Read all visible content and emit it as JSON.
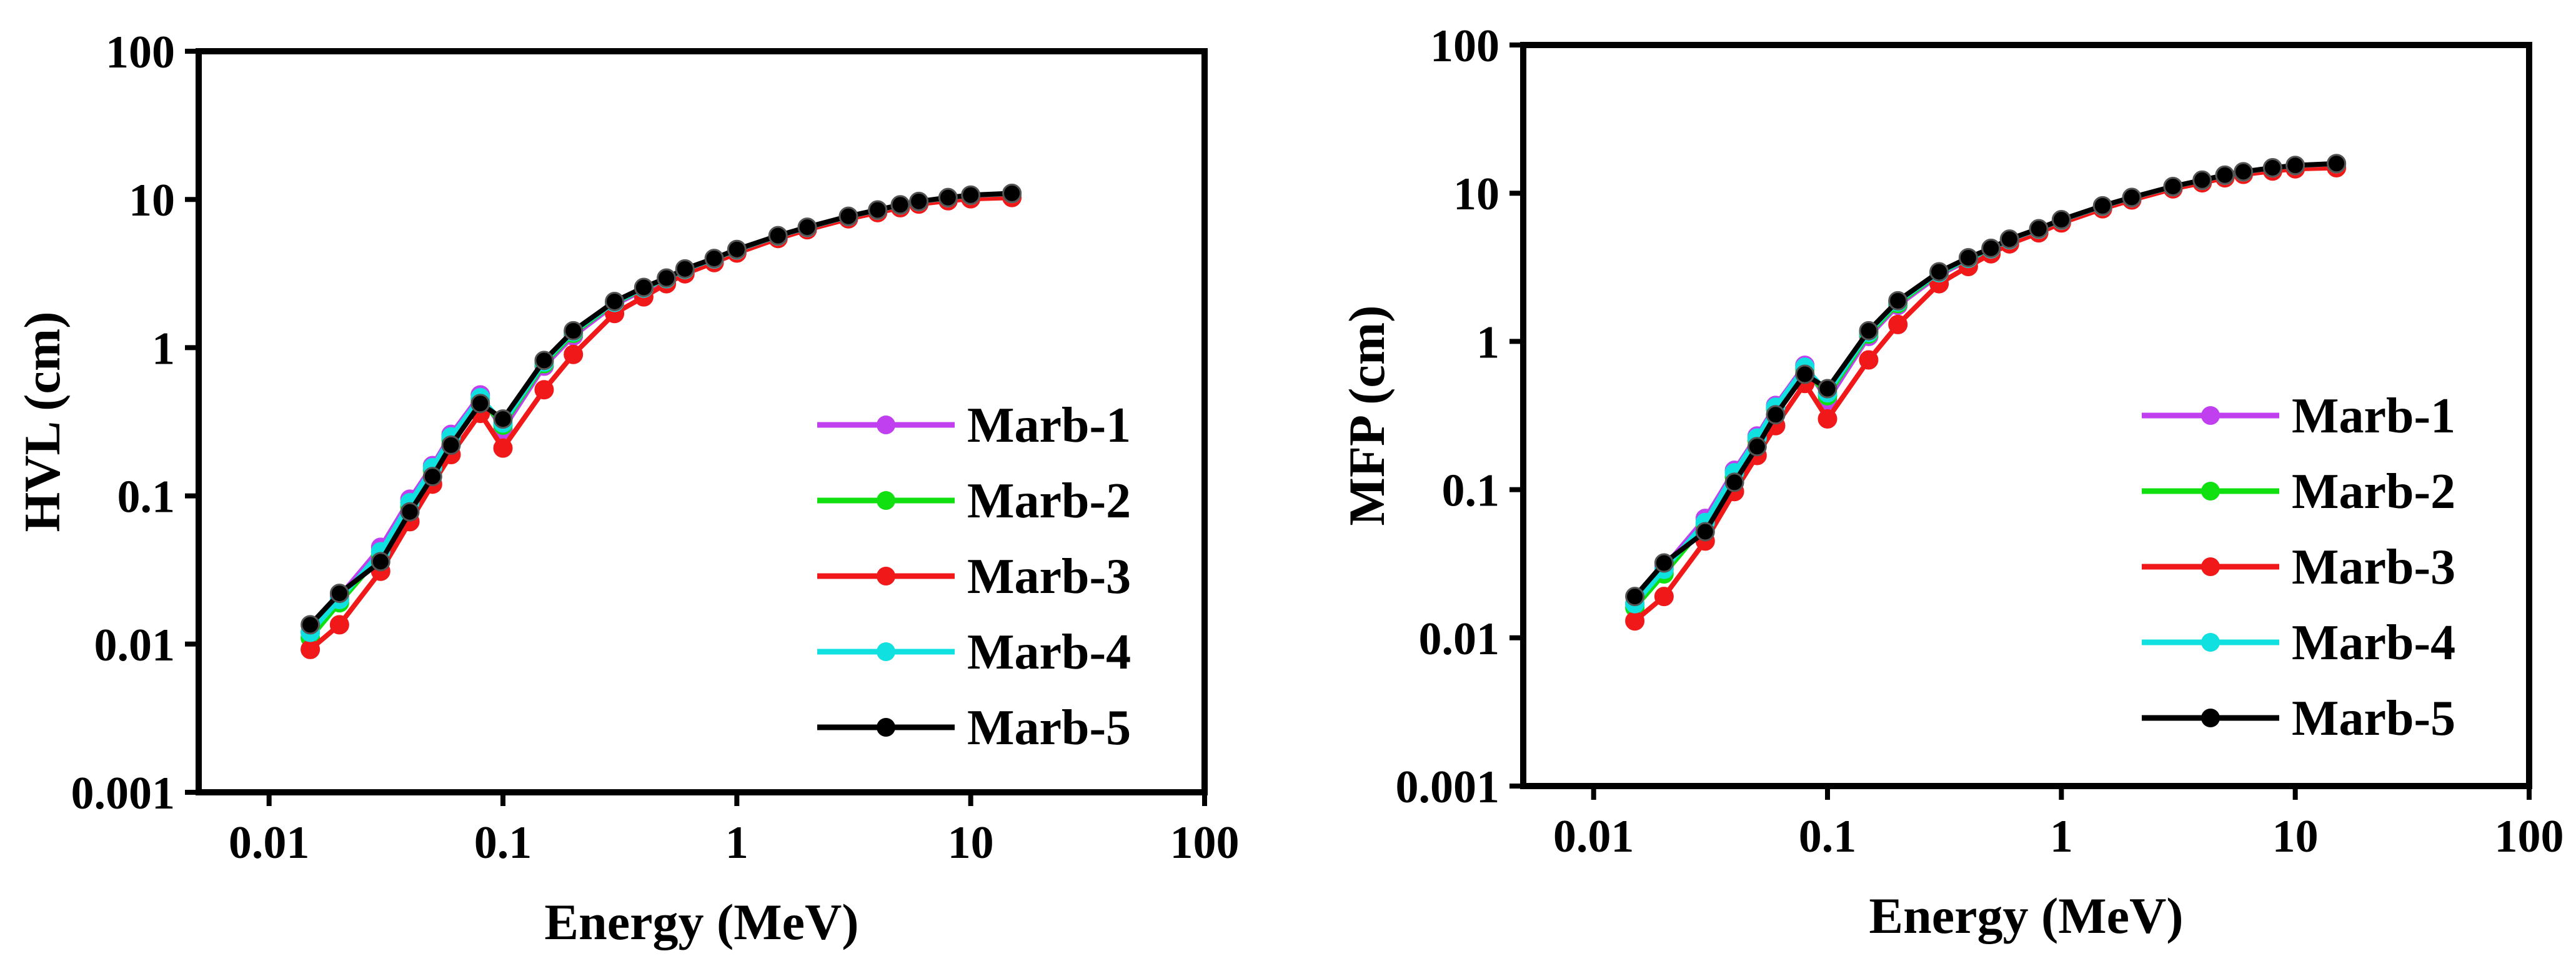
{
  "colors": {
    "Marb-1": "#c040f0",
    "Marb-2": "#10e010",
    "Marb-3": "#f01818",
    "Marb-4": "#10e0e0",
    "Marb-5": "#000000"
  },
  "chart_data": [
    {
      "type": "line",
      "xlabel": "Energy (MeV)",
      "ylabel": "HVL (cm)",
      "xscale": "log",
      "yscale": "log",
      "xlim": [
        0.005,
        100
      ],
      "ylim": [
        0.001,
        100
      ],
      "xticks": [
        "0.01",
        "0.1",
        "1",
        "10",
        "100"
      ],
      "yticks": [
        "0.001",
        "0.01",
        "0.1",
        "1",
        "10",
        "100"
      ],
      "legend_position": "lower-right",
      "x": [
        0.015,
        0.02,
        0.03,
        0.04,
        0.05,
        0.06,
        0.08,
        0.1,
        0.15,
        0.2,
        0.3,
        0.4,
        0.5,
        0.6,
        0.8,
        1,
        1.5,
        2,
        3,
        4,
        5,
        6,
        8,
        10,
        15
      ],
      "series": [
        {
          "name": "Marb-1",
          "values": [
            0.012,
            0.021,
            0.045,
            0.095,
            0.16,
            0.26,
            0.48,
            0.28,
            0.75,
            1.2,
            1.95,
            2.45,
            2.85,
            3.3,
            3.9,
            4.5,
            5.6,
            6.4,
            7.6,
            8.4,
            9.1,
            9.6,
            10.2,
            10.6,
            10.9
          ]
        },
        {
          "name": "Marb-2",
          "values": [
            0.011,
            0.019,
            0.04,
            0.085,
            0.15,
            0.24,
            0.45,
            0.3,
            0.78,
            1.25,
            2.0,
            2.5,
            2.9,
            3.35,
            3.95,
            4.55,
            5.65,
            6.45,
            7.65,
            8.45,
            9.15,
            9.65,
            10.25,
            10.65,
            10.95
          ]
        },
        {
          "name": "Marb-3",
          "values": [
            0.0092,
            0.0135,
            0.031,
            0.067,
            0.12,
            0.19,
            0.36,
            0.21,
            0.52,
            0.9,
            1.7,
            2.2,
            2.7,
            3.15,
            3.75,
            4.35,
            5.45,
            6.25,
            7.4,
            8.15,
            8.8,
            9.3,
            9.8,
            10.1,
            10.3
          ]
        },
        {
          "name": "Marb-4",
          "values": [
            0.012,
            0.02,
            0.042,
            0.09,
            0.155,
            0.25,
            0.46,
            0.31,
            0.8,
            1.28,
            2.02,
            2.52,
            2.92,
            3.37,
            3.97,
            4.57,
            5.67,
            6.47,
            7.67,
            8.47,
            9.17,
            9.67,
            10.27,
            10.67,
            10.97
          ]
        },
        {
          "name": "Marb-5",
          "values": [
            0.0135,
            0.022,
            0.036,
            0.078,
            0.135,
            0.22,
            0.42,
            0.33,
            0.82,
            1.3,
            2.05,
            2.55,
            2.95,
            3.4,
            4.0,
            4.6,
            5.7,
            6.5,
            7.7,
            8.5,
            9.2,
            9.7,
            10.3,
            10.7,
            11.0
          ]
        }
      ]
    },
    {
      "type": "line",
      "xlabel": "Energy (MeV)",
      "ylabel": "MFP (cm)",
      "xscale": "log",
      "yscale": "log",
      "xlim": [
        0.005,
        100
      ],
      "ylim": [
        0.001,
        100
      ],
      "xticks": [
        "0.01",
        "0.1",
        "1",
        "10",
        "100"
      ],
      "yticks": [
        "0.001",
        "0.01",
        "0.1",
        "1",
        "10",
        "100"
      ],
      "legend_position": "lower-right",
      "x": [
        0.015,
        0.02,
        0.03,
        0.04,
        0.05,
        0.06,
        0.08,
        0.1,
        0.15,
        0.2,
        0.3,
        0.4,
        0.5,
        0.6,
        0.8,
        1,
        1.5,
        2,
        3,
        4,
        5,
        6,
        8,
        10,
        15
      ],
      "series": [
        {
          "name": "Marb-1",
          "values": [
            0.017,
            0.03,
            0.064,
            0.135,
            0.23,
            0.37,
            0.69,
            0.4,
            1.08,
            1.75,
            2.8,
            3.55,
            4.1,
            4.75,
            5.6,
            6.5,
            8.1,
            9.2,
            11.0,
            12.1,
            13.1,
            13.8,
            14.7,
            15.3,
            15.7
          ]
        },
        {
          "name": "Marb-2",
          "values": [
            0.016,
            0.027,
            0.058,
            0.122,
            0.215,
            0.35,
            0.65,
            0.43,
            1.12,
            1.8,
            2.88,
            3.6,
            4.18,
            4.83,
            5.7,
            6.56,
            8.15,
            9.3,
            11.05,
            12.2,
            13.2,
            13.9,
            14.8,
            15.35,
            15.8
          ]
        },
        {
          "name": "Marb-3",
          "values": [
            0.013,
            0.019,
            0.045,
            0.097,
            0.17,
            0.27,
            0.52,
            0.3,
            0.75,
            1.3,
            2.45,
            3.2,
            3.9,
            4.55,
            5.4,
            6.3,
            7.85,
            9.0,
            10.7,
            11.75,
            12.7,
            13.4,
            14.1,
            14.6,
            14.85
          ]
        },
        {
          "name": "Marb-4",
          "values": [
            0.017,
            0.029,
            0.06,
            0.13,
            0.223,
            0.36,
            0.67,
            0.45,
            1.15,
            1.85,
            2.91,
            3.63,
            4.21,
            4.86,
            5.72,
            6.59,
            8.18,
            9.33,
            11.07,
            12.22,
            13.22,
            13.93,
            14.82,
            15.38,
            15.82
          ]
        },
        {
          "name": "Marb-5",
          "values": [
            0.019,
            0.032,
            0.052,
            0.112,
            0.195,
            0.32,
            0.6,
            0.48,
            1.18,
            1.88,
            2.95,
            3.67,
            4.25,
            4.9,
            5.76,
            6.63,
            8.22,
            9.37,
            11.1,
            12.25,
            13.25,
            13.96,
            14.85,
            15.4,
            15.85
          ]
        }
      ]
    }
  ]
}
